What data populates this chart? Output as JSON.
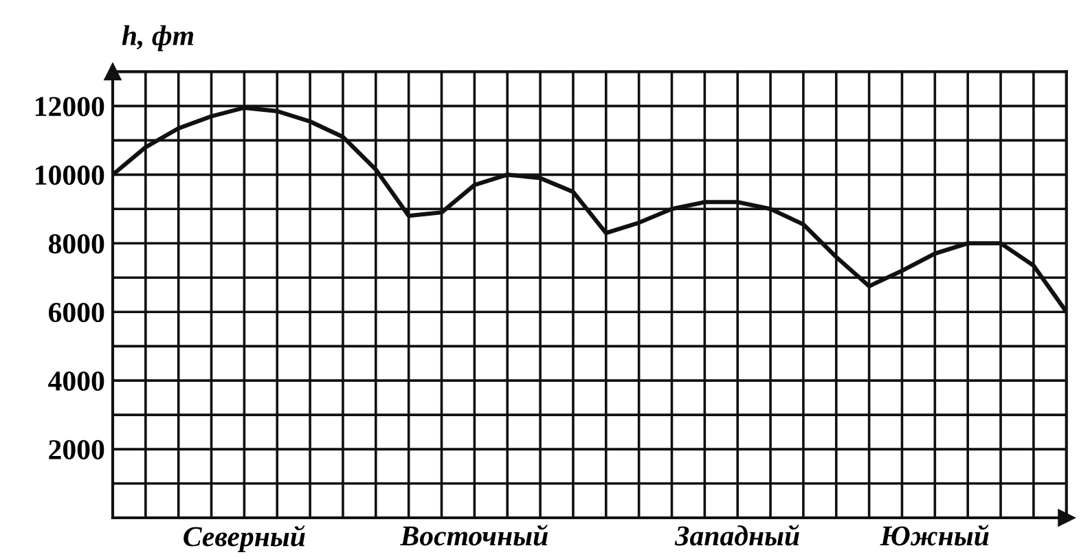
{
  "chart_data": {
    "type": "line",
    "ylabel": "h, фт",
    "categories": [
      null,
      null,
      null,
      null,
      "Северный",
      null,
      null,
      null,
      null,
      null,
      null,
      "Восточный",
      null,
      null,
      null,
      null,
      null,
      null,
      null,
      "Западный",
      null,
      null,
      null,
      null,
      null,
      "Южный",
      null,
      null,
      null,
      null
    ],
    "series": [
      {
        "color": "#111111",
        "values": [
          10000,
          10800,
          11350,
          11700,
          11950,
          11850,
          11550,
          11100,
          10150,
          8800,
          8900,
          9700,
          10000,
          9900,
          9500,
          8300,
          8600,
          9000,
          9200,
          9200,
          9000,
          8550,
          7600,
          6750,
          7200,
          7700,
          8000,
          8000,
          7350,
          6000
        ]
      }
    ],
    "ylim": [
      0,
      13000
    ],
    "yticks": [
      {
        "value": 1000,
        "label": null
      },
      2000,
      {
        "value": 3000,
        "label": null
      },
      4000,
      {
        "value": 5000,
        "label": null
      },
      6000,
      {
        "value": 7000,
        "label": null
      },
      8000,
      {
        "value": 9000,
        "label": null
      },
      10000,
      {
        "value": 11000,
        "label": null
      },
      12000
    ],
    "grid": true,
    "marker": "none",
    "line_style": "solid"
  }
}
